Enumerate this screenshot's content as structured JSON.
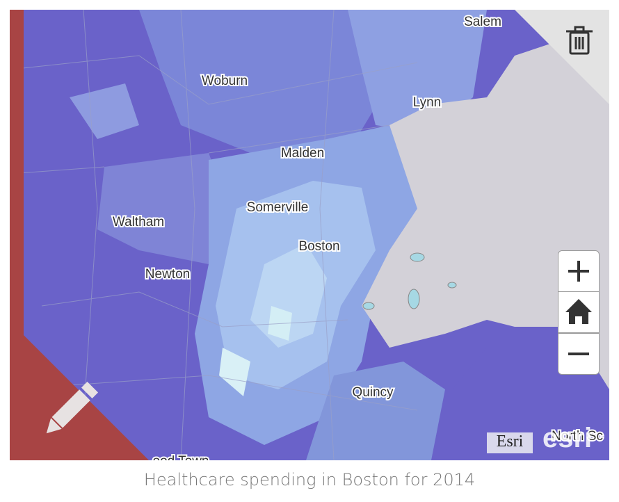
{
  "map": {
    "labels": [
      "Salem",
      "Woburn",
      "Lynn",
      "Malden",
      "Somerville",
      "Waltham",
      "Boston",
      "Newton",
      "Quincy",
      "ood Town",
      "North Sc"
    ],
    "attribution": "Esri",
    "logo": "esri"
  },
  "caption": "Healthcare spending in Boston for 2014"
}
